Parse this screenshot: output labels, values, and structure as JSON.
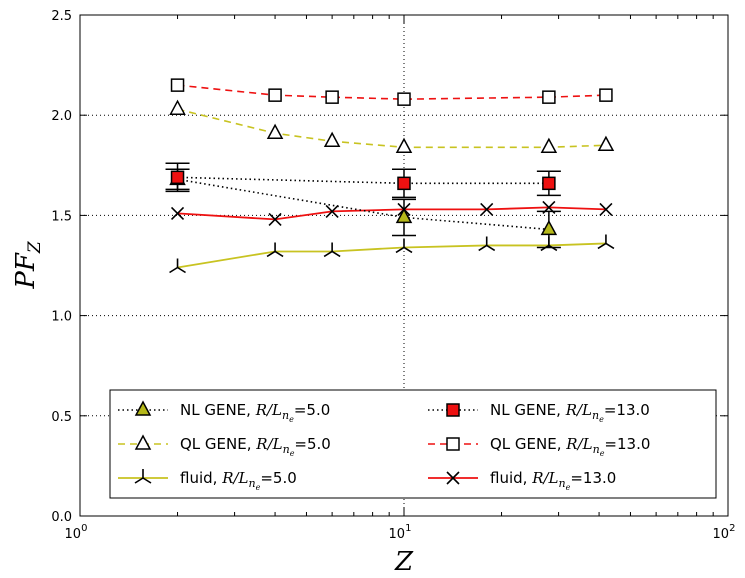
{
  "chart_data": {
    "type": "line",
    "title": "",
    "xlabel": "Z",
    "ylabel": "PF_Z",
    "xscale": "log",
    "xlim": [
      1,
      100
    ],
    "ylim": [
      0.0,
      2.5
    ],
    "grid": "dotted at x=10 and y-ticks",
    "legend_position": "bottom",
    "x_tick_labels": [
      {
        "base": "10",
        "exp": "0",
        "value": 1
      },
      {
        "base": "10",
        "exp": "1",
        "value": 10
      },
      {
        "base": "10",
        "exp": "2",
        "value": 100
      }
    ],
    "y_tick_labels": [
      "0.0",
      "0.5",
      "1.0",
      "1.5",
      "2.0",
      "2.5"
    ],
    "y_ticks": [
      0.0,
      0.5,
      1.0,
      1.5,
      2.0,
      2.5
    ],
    "series": [
      {
        "key": "nl5",
        "name_prefix": "NL GENE, ",
        "name_math": "R/L",
        "name_sub": "n",
        "name_subsub": "e",
        "name_value": "=5.0",
        "color": "#000000",
        "marker_color": "#b5b81a",
        "line_style": "dotted",
        "marker": "triangle-filled",
        "x": [
          2,
          10,
          28
        ],
        "y": [
          1.68,
          1.49,
          1.43
        ],
        "yerr": [
          0.05,
          0.09,
          0.09
        ]
      },
      {
        "key": "nl13",
        "name_prefix": "NL GENE, ",
        "name_math": "R/L",
        "name_sub": "n",
        "name_subsub": "e",
        "name_value": "=13.0",
        "color": "#000000",
        "marker_color": "#ee1111",
        "line_style": "dotted",
        "marker": "square-filled",
        "x": [
          2,
          10,
          28
        ],
        "y": [
          1.69,
          1.66,
          1.66
        ],
        "yerr": [
          0.07,
          0.07,
          0.06
        ]
      },
      {
        "key": "ql5",
        "name_prefix": "QL GENE, ",
        "name_math": "R/L",
        "name_sub": "n",
        "name_subsub": "e",
        "name_value": "=5.0",
        "color": "#c8c321",
        "line_style": "dashed",
        "marker": "triangle-open",
        "x": [
          2,
          4,
          6,
          10,
          28,
          42
        ],
        "y": [
          2.03,
          1.91,
          1.87,
          1.84,
          1.84,
          1.85
        ]
      },
      {
        "key": "ql13",
        "name_prefix": "QL GENE, ",
        "name_math": "R/L",
        "name_sub": "n",
        "name_subsub": "e",
        "name_value": "=13.0",
        "color": "#ee1111",
        "line_style": "dashed",
        "marker": "square-open",
        "x": [
          2,
          4,
          6,
          10,
          28,
          42
        ],
        "y": [
          2.15,
          2.1,
          2.09,
          2.08,
          2.09,
          2.1
        ]
      },
      {
        "key": "fluid5",
        "name_prefix": "fluid, ",
        "name_math": "R/L",
        "name_sub": "n",
        "name_subsub": "e",
        "name_value": "=5.0",
        "color": "#c8c321",
        "line_style": "solid",
        "marker": "tri-up",
        "x": [
          2,
          4,
          6,
          10,
          18,
          28,
          42
        ],
        "y": [
          1.24,
          1.32,
          1.32,
          1.34,
          1.35,
          1.35,
          1.36
        ]
      },
      {
        "key": "fluid13",
        "name_prefix": "fluid, ",
        "name_math": "R/L",
        "name_sub": "n",
        "name_subsub": "e",
        "name_value": "=13.0",
        "color": "#ee1111",
        "line_style": "solid",
        "marker": "x",
        "x": [
          2,
          4,
          6,
          10,
          18,
          28,
          42
        ],
        "y": [
          1.51,
          1.48,
          1.52,
          1.53,
          1.53,
          1.54,
          1.53
        ]
      }
    ],
    "legend_order": [
      "nl5",
      "nl13",
      "ql5",
      "ql13",
      "fluid5",
      "fluid13"
    ]
  }
}
